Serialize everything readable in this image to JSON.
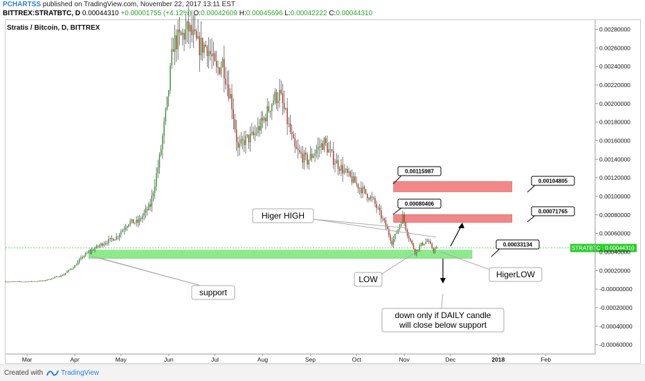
{
  "header": {
    "author": "PCHARTSS",
    "published_text": "published on TradingView.com, November 22, 2017 13:11 EST",
    "symbol_line": "BITTREX:STRATBTC, D",
    "last": "0.00044310",
    "change": "+0.00001755 (+4.12%)",
    "o_label": "O:",
    "o_value": "0.00042609",
    "h_label": "H:",
    "h_value": "0.00045696",
    "l_label": "L:",
    "l_value": "0.00042222",
    "c_label": "C:",
    "c_value": "0.00044310"
  },
  "chart_title": "Stratis / Bitcoin, D, BITTREX",
  "footer": {
    "created": "Created with",
    "brand": "TradingView"
  },
  "colors": {
    "up": "#3a9a3a",
    "down": "#c0392b",
    "zone_red": "#f07a7a",
    "zone_green": "#7fe87f",
    "price_line": "#2ecc2e",
    "axis_text": "#111111"
  },
  "chart_data": {
    "type": "candlestick",
    "ylim": [
      -0.0007,
      0.0029
    ],
    "y_ticks": [
      "0.00280000",
      "0.00260000",
      "0.00240000",
      "0.00220000",
      "0.00200000",
      "0.00180000",
      "0.00160000",
      "0.00140000",
      "0.00120000",
      "0.00100000",
      "0.00080000",
      "0.00060000",
      "0.00040000",
      "0.00020000",
      "-0.00000000",
      "-0.00020000",
      "-0.00040000",
      "-0.00060000"
    ],
    "x_ticks": [
      "Mar",
      "Apr",
      "May",
      "Jun",
      "Jul",
      "Aug",
      "Sep",
      "Oct",
      "Nov",
      "Dec",
      "2018",
      "Feb"
    ],
    "x_range": [
      "2017-02-15",
      "2018-03-05"
    ],
    "current_price_label": "STRATBTC : 0.00044310",
    "current_price": 0.0004431,
    "price_path": [
      [
        "2017-02-15",
        8e-05
      ],
      [
        "2017-03-01",
        8e-05
      ],
      [
        "2017-03-12",
        9e-05
      ],
      [
        "2017-03-24",
        0.00015
      ],
      [
        "2017-04-01",
        0.00025
      ],
      [
        "2017-04-06",
        0.00035
      ],
      [
        "2017-04-12",
        0.00042
      ],
      [
        "2017-04-20",
        0.0005
      ],
      [
        "2017-04-28",
        0.00056
      ],
      [
        "2017-05-06",
        0.00072
      ],
      [
        "2017-05-12",
        0.00072
      ],
      [
        "2017-05-20",
        0.0009
      ],
      [
        "2017-05-26",
        0.0014
      ],
      [
        "2017-05-31",
        0.002
      ],
      [
        "2017-06-04",
        0.00265
      ],
      [
        "2017-06-08",
        0.0027
      ],
      [
        "2017-06-14",
        0.0028
      ],
      [
        "2017-06-20",
        0.00262
      ],
      [
        "2017-06-26",
        0.00262
      ],
      [
        "2017-07-02",
        0.00235
      ],
      [
        "2017-07-06",
        0.00245
      ],
      [
        "2017-07-12",
        0.002
      ],
      [
        "2017-07-16",
        0.0015
      ],
      [
        "2017-07-20",
        0.0016
      ],
      [
        "2017-07-26",
        0.00165
      ],
      [
        "2017-08-01",
        0.0018
      ],
      [
        "2017-08-08",
        0.00205
      ],
      [
        "2017-08-12",
        0.0021
      ],
      [
        "2017-08-18",
        0.00175
      ],
      [
        "2017-08-22",
        0.0015
      ],
      [
        "2017-08-30",
        0.00138
      ],
      [
        "2017-09-06",
        0.00152
      ],
      [
        "2017-09-10",
        0.00158
      ],
      [
        "2017-09-16",
        0.0014
      ],
      [
        "2017-09-24",
        0.00125
      ],
      [
        "2017-10-04",
        0.00108
      ],
      [
        "2017-10-12",
        0.00095
      ],
      [
        "2017-10-20",
        0.00068
      ],
      [
        "2017-10-24",
        0.0005
      ],
      [
        "2017-10-28",
        0.00065
      ],
      [
        "2017-10-31",
        0.00078
      ],
      [
        "2017-11-03",
        0.0006
      ],
      [
        "2017-11-08",
        0.0004
      ],
      [
        "2017-11-12",
        0.00048
      ],
      [
        "2017-11-16",
        0.00052
      ],
      [
        "2017-11-20",
        0.00042
      ],
      [
        "2017-11-22",
        0.00044
      ]
    ],
    "zones": [
      {
        "name": "upper-resistance-zone",
        "color": "red",
        "y_low": 0.00104805,
        "y_high": 0.00115987,
        "x_start": "2017-10-25",
        "x_end": "2018-01-10"
      },
      {
        "name": "lower-resistance-zone",
        "color": "red",
        "y_low": 0.00071765,
        "y_high": 0.00080406,
        "x_start": "2017-10-25",
        "x_end": "2018-01-10"
      },
      {
        "name": "support-zone",
        "color": "green",
        "y_low": 0.00033134,
        "y_high": 0.00042,
        "x_start": "2017-04-10",
        "x_end": "2017-12-15"
      }
    ],
    "price_labels": [
      {
        "name": "label-upper-top",
        "text": "0.00115987"
      },
      {
        "name": "label-upper-bottom",
        "text": "0.00104805"
      },
      {
        "name": "label-lower-top",
        "text": "0.00080406"
      },
      {
        "name": "label-lower-bottom",
        "text": "0.00071765"
      },
      {
        "name": "label-support",
        "text": "0.00033134"
      }
    ],
    "annotations": [
      {
        "name": "note-higher-high",
        "text": "Higer HIGH"
      },
      {
        "name": "note-support",
        "text": "support"
      },
      {
        "name": "note-low",
        "text": "LOW"
      },
      {
        "name": "note-higher-low",
        "text": "HigerLOW"
      },
      {
        "name": "note-down-line1",
        "text": "down only if DAILY candle"
      },
      {
        "name": "note-down-line2",
        "text": "will close below support"
      }
    ]
  }
}
